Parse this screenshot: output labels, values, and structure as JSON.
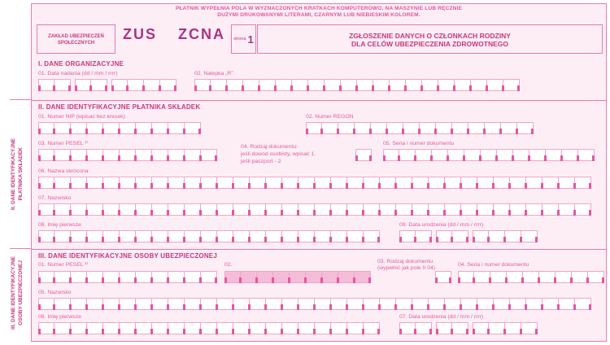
{
  "instructions": {
    "line1": "PŁATNIK WYPEŁNIA POLA W WYZNACZONYCH KRATKACH KOMPUTEROWO, NA MASZYNIE LUB RĘCZNIE",
    "line2": "DUŻYMI DRUKOWANYMI LITERAMI, CZARNYM LUB NIEBIESKIM KOLOREM."
  },
  "header": {
    "org_name_line1": "ZAKŁAD UBEZPIECZEŃ",
    "org_name_line2": "SPOŁECZNYCH",
    "code_zus": "ZUS",
    "code_form": "ZCNA",
    "page_label": "strona",
    "page_number": "1",
    "title_line1": "ZGŁOSZENIE DANYCH O CZŁONKACH RODZINY",
    "title_line2": "DLA CELÓW UBEZPIECZENIA ZDROWOTNEGO"
  },
  "side_labels": {
    "section2_line1": "II. DANE IDENTYFIKACYJNE",
    "section2_line2": "PŁATNIKA SKŁADEK",
    "section3_line1": "III. DANE IDENTYFIKACYJNE",
    "section3_line2": "OSOBY UBEZPIECZONEJ"
  },
  "section1": {
    "title": "I. DANE ORGANIZACYJNE",
    "f01": {
      "label": "01. Data nadania (dd / mm / rrrr)",
      "boxes": [
        2,
        2,
        4
      ]
    },
    "f02": {
      "label": "02. Nalepka „R”",
      "boxes": [
        20
      ]
    }
  },
  "section2": {
    "title": "II. DANE IDENTYFIKACYJNE PŁATNIKA SKŁADEK",
    "f01": {
      "label": "01. Numer NIP (wpisać bez kresek)",
      "boxes": [
        10
      ]
    },
    "f02": {
      "label": "02. Numer REGON",
      "boxes": [
        14
      ]
    },
    "f03": {
      "label": "03. Numer PESEL ¹⁾",
      "boxes": [
        11
      ]
    },
    "f04": {
      "label": "04. Rodzaj dokumentu:",
      "line2": "jeśli dowód osobisty, wpisać 1,",
      "line3": "jeśli paszport - 2",
      "boxes": [
        1
      ]
    },
    "f05": {
      "label": "05. Seria i numer dokumentu",
      "boxes": [
        13
      ]
    },
    "f06": {
      "label": "06. Nazwa skrócona",
      "boxes": [
        34
      ]
    },
    "f07": {
      "label": "07. Nazwisko",
      "boxes": [
        34
      ]
    },
    "f08": {
      "label": "08. Imię pierwsze",
      "boxes": [
        21
      ]
    },
    "f09": {
      "label": "09. Data urodzenia (dd / mm / rrrr)",
      "boxes": [
        2,
        2,
        4
      ]
    }
  },
  "section3": {
    "title": "III. DANE IDENTYFIKACYJNE OSOBY UBEZPIECZONEJ",
    "f01": {
      "label": "01. Numer PESEL ¹⁾",
      "boxes": [
        11
      ]
    },
    "f02": {
      "label": "02.",
      "boxes": [
        9
      ]
    },
    "f03": {
      "label": "03. Rodzaj dokumentu",
      "line2": "(wypełnić jak pole II 04)",
      "boxes": [
        1
      ]
    },
    "f04": {
      "label": "04. Seria i numer dokumentu",
      "boxes": [
        9
      ]
    },
    "f05": {
      "label": "05. Nazwisko",
      "boxes": [
        34
      ]
    },
    "f06": {
      "label": "06. Imię pierwsze",
      "boxes": [
        21
      ]
    },
    "f07": {
      "label": "07. Data urodzenia (dd / mm / rrrr)",
      "boxes": [
        2,
        2,
        4
      ]
    }
  },
  "colors": {
    "accent": "#c9367f",
    "line": "#e87ab0",
    "tick": "#e8559e",
    "shaded_fill": "#f6bcd7",
    "background": "#fdeef5"
  }
}
